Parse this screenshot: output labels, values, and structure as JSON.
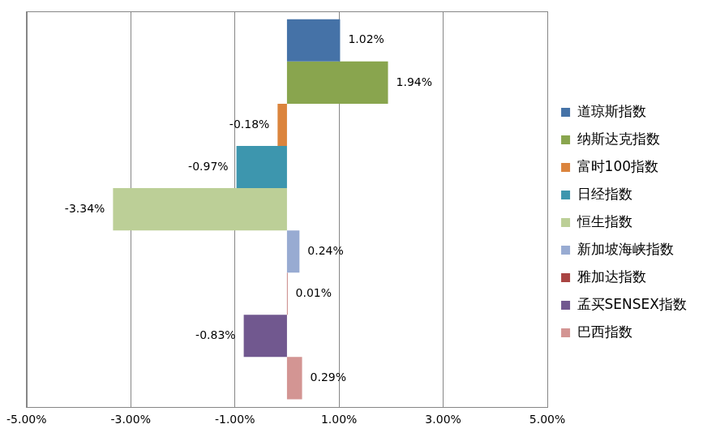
{
  "chart_data": {
    "type": "bar",
    "orientation": "horizontal",
    "legend": "right",
    "grid": true,
    "data_labels": true,
    "categories": [
      null
    ],
    "series": [
      {
        "name": "道琼斯指数",
        "color": "#4572a7",
        "values": [
          1.02
        ],
        "value_labels": [
          "1.02%"
        ]
      },
      {
        "name": "纳斯达克指数",
        "color": "#89a54e",
        "values": [
          1.94
        ],
        "value_labels": [
          "1.94%"
        ]
      },
      {
        "name": "富时100指数",
        "color": "#db843d",
        "values": [
          -0.18
        ],
        "value_labels": [
          "-0.18%"
        ]
      },
      {
        "name": "日经指数",
        "color": "#3d96ae",
        "values": [
          -0.97
        ],
        "value_labels": [
          "-0.97%"
        ]
      },
      {
        "name": "恒生指数",
        "color": "#bccf97",
        "values": [
          -3.34
        ],
        "value_labels": [
          "-3.34%"
        ]
      },
      {
        "name": "新加坡海峡指数",
        "color": "#98abd2",
        "values": [
          0.24
        ],
        "value_labels": [
          "0.24%"
        ]
      },
      {
        "name": "雅加达指数",
        "color": "#a94442",
        "values": [
          0.01
        ],
        "value_labels": [
          "0.01%"
        ]
      },
      {
        "name": "孟买SENSEX指数",
        "color": "#71588f",
        "values": [
          -0.83
        ],
        "value_labels": [
          "-0.83%"
        ]
      },
      {
        "name": "巴西指数",
        "color": "#d39593",
        "values": [
          0.29
        ],
        "value_labels": [
          "0.29%"
        ]
      }
    ],
    "xlim": [
      -5,
      5
    ],
    "xticks": [
      {
        "value": -5,
        "label": "-5.00%"
      },
      {
        "value": -3,
        "label": "-3.00%"
      },
      {
        "value": -1,
        "label": "-1.00%"
      },
      {
        "value": 1,
        "label": "1.00%"
      },
      {
        "value": 3,
        "label": "3.00%"
      },
      {
        "value": 5,
        "label": "5.00%"
      }
    ]
  }
}
